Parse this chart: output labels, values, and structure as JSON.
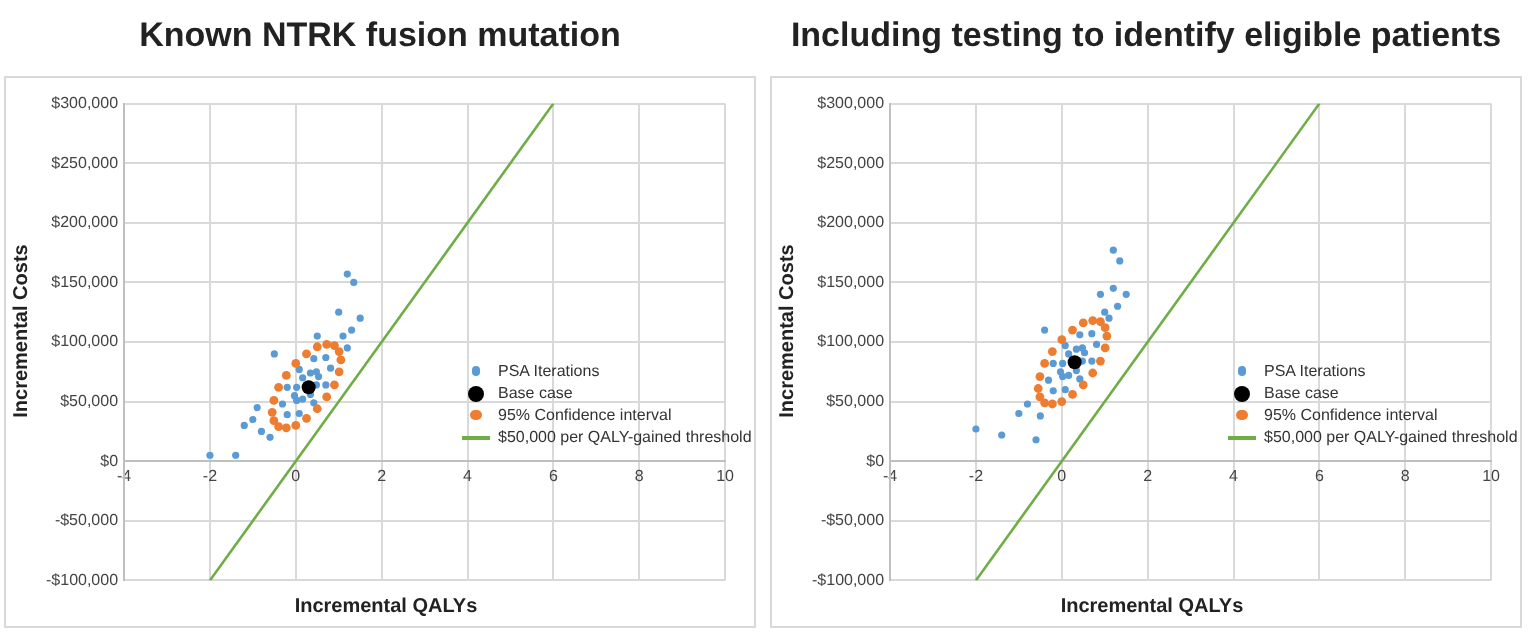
{
  "chart_data": [
    {
      "type": "scatter",
      "title": "Known NTRK fusion mutation",
      "xlabel": "Incremental QALYs",
      "ylabel": "Incremental Costs",
      "xlim": [
        -4,
        10
      ],
      "xticks": [
        -4,
        -2,
        0,
        2,
        4,
        6,
        8,
        10
      ],
      "ylim": [
        -100000,
        300000
      ],
      "yticks": [
        {
          "value": -100000,
          "label": "-$100,000"
        },
        {
          "value": -50000,
          "label": "-$50,000"
        },
        {
          "value": 0,
          "label": "$0"
        },
        {
          "value": 50000,
          "label": "$50,000"
        },
        {
          "value": 100000,
          "label": "$100,000"
        },
        {
          "value": 150000,
          "label": "$150,000"
        },
        {
          "value": 200000,
          "label": "$200,000"
        },
        {
          "value": 250000,
          "label": "$250,000"
        },
        {
          "value": 300000,
          "label": "$300,000"
        }
      ],
      "grid": true,
      "legend": "right",
      "series": [
        {
          "name": "PSA Iterations",
          "color": "#5b9bd5",
          "x": [
            0.81,
            0.7,
            0.42,
            0.08,
            -0.2,
            -0.31,
            -0.2,
            0.08,
            0.42,
            0.7,
            0.53,
            0.48,
            0.34,
            0.16,
            0.02,
            -0.03,
            0.02,
            0.16,
            0.34,
            0.48,
            1.2,
            1.35,
            -2.0,
            -1.4,
            1.0,
            1.5,
            -1.2,
            -0.9,
            -0.8,
            1.3,
            1.1,
            0.5,
            -0.5,
            -0.6,
            -1.0,
            1.2
          ],
          "values": [
            78000,
            87000,
            86000,
            77000,
            62000,
            48000,
            39000,
            40000,
            49000,
            64000,
            71000,
            75000,
            74000,
            70000,
            62000,
            55000,
            51000,
            52000,
            56000,
            64000,
            157000,
            150000,
            5000,
            5000,
            125000,
            120000,
            30000,
            45000,
            25000,
            110000,
            105000,
            105000,
            90000,
            20000,
            35000,
            95000
          ]
        },
        {
          "name": "Base case",
          "color": "#000000",
          "x": [
            0.3
          ],
          "values": [
            62000
          ]
        },
        {
          "name": "95% Confidence interval",
          "color": "#ed7d31",
          "x": [
            1.05,
            1.01,
            0.9,
            0.72,
            0.5,
            0.25,
            0.0,
            -0.22,
            -0.4,
            -0.51,
            -0.55,
            -0.51,
            -0.4,
            -0.22,
            0.0,
            0.25,
            0.5,
            0.72,
            0.9,
            1.01
          ],
          "values": [
            85000,
            92000,
            97000,
            98000,
            96000,
            90000,
            82000,
            72000,
            62000,
            51000,
            41000,
            34000,
            29000,
            28000,
            30000,
            36000,
            44000,
            54000,
            64000,
            75000
          ]
        },
        {
          "name": "$50,000 per QALY-gained threshold",
          "type": "line",
          "color": "#70ad47",
          "x": [
            -2,
            6
          ],
          "values": [
            -100000,
            300000
          ]
        }
      ]
    },
    {
      "type": "scatter",
      "title": "Including testing to identify eligible patients",
      "xlabel": "Incremental QALYs",
      "ylabel": "Incremental Costs",
      "xlim": [
        -4,
        10
      ],
      "xticks": [
        -4,
        -2,
        0,
        2,
        4,
        6,
        8,
        10
      ],
      "ylim": [
        -100000,
        300000
      ],
      "yticks": [
        {
          "value": -100000,
          "label": "-$100,000"
        },
        {
          "value": -50000,
          "label": "-$50,000"
        },
        {
          "value": 0,
          "label": "$0"
        },
        {
          "value": 50000,
          "label": "$50,000"
        },
        {
          "value": 100000,
          "label": "$100,000"
        },
        {
          "value": 150000,
          "label": "$150,000"
        },
        {
          "value": 200000,
          "label": "$200,000"
        },
        {
          "value": 250000,
          "label": "$250,000"
        },
        {
          "value": 300000,
          "label": "$300,000"
        }
      ],
      "grid": true,
      "legend": "right",
      "series": [
        {
          "name": "PSA Iterations",
          "color": "#5b9bd5",
          "x": [
            0.81,
            0.7,
            0.42,
            0.08,
            -0.2,
            -0.31,
            -0.2,
            0.08,
            0.42,
            0.7,
            0.53,
            0.48,
            0.34,
            0.16,
            0.02,
            -0.03,
            0.02,
            0.16,
            0.34,
            0.48,
            1.2,
            1.35,
            -2.0,
            -1.4,
            -0.6,
            1.5,
            1.2,
            -1.0,
            -0.5,
            1.3,
            0.9,
            -0.4,
            1.1,
            -0.8,
            1.0
          ],
          "values": [
            98000,
            107000,
            106000,
            97000,
            82000,
            68000,
            59000,
            60000,
            69000,
            84000,
            91000,
            95000,
            94000,
            90000,
            82000,
            75000,
            71000,
            72000,
            76000,
            84000,
            177000,
            168000,
            27000,
            22000,
            18000,
            140000,
            145000,
            40000,
            38000,
            130000,
            140000,
            110000,
            120000,
            48000,
            125000
          ]
        },
        {
          "name": "Base case",
          "color": "#000000",
          "x": [
            0.3
          ],
          "values": [
            83000
          ]
        },
        {
          "name": "95% Confidence interval",
          "color": "#ed7d31",
          "x": [
            1.05,
            1.01,
            0.9,
            0.72,
            0.5,
            0.25,
            0.0,
            -0.22,
            -0.4,
            -0.51,
            -0.55,
            -0.51,
            -0.4,
            -0.22,
            0.0,
            0.25,
            0.5,
            0.72,
            0.9,
            1.01
          ],
          "values": [
            105000,
            112000,
            117000,
            118000,
            116000,
            110000,
            102000,
            92000,
            82000,
            71000,
            61000,
            54000,
            49000,
            48000,
            50000,
            56000,
            64000,
            74000,
            84000,
            95000
          ]
        },
        {
          "name": "$50,000 per QALY-gained threshold",
          "type": "line",
          "color": "#70ad47",
          "x": [
            -2,
            6
          ],
          "values": [
            -100000,
            300000
          ]
        }
      ]
    }
  ]
}
